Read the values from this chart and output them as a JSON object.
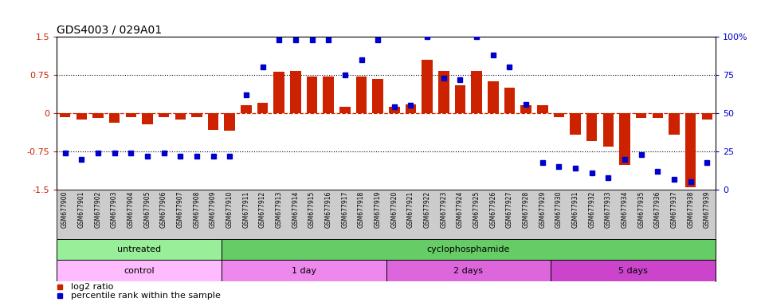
{
  "title": "GDS4003 / 029A01",
  "samples": [
    "GSM677900",
    "GSM677901",
    "GSM677902",
    "GSM677903",
    "GSM677904",
    "GSM677905",
    "GSM677906",
    "GSM677907",
    "GSM677908",
    "GSM677909",
    "GSM677910",
    "GSM677911",
    "GSM677912",
    "GSM677913",
    "GSM677914",
    "GSM677915",
    "GSM677916",
    "GSM677917",
    "GSM677918",
    "GSM677919",
    "GSM677920",
    "GSM677921",
    "GSM677922",
    "GSM677923",
    "GSM677924",
    "GSM677925",
    "GSM677926",
    "GSM677927",
    "GSM677928",
    "GSM677929",
    "GSM677930",
    "GSM677931",
    "GSM677932",
    "GSM677933",
    "GSM677934",
    "GSM677935",
    "GSM677936",
    "GSM677937",
    "GSM677938",
    "GSM677939"
  ],
  "log2_ratio": [
    -0.08,
    -0.12,
    -0.1,
    -0.18,
    -0.08,
    -0.22,
    -0.08,
    -0.12,
    -0.08,
    -0.32,
    -0.35,
    0.15,
    0.2,
    0.82,
    0.83,
    0.72,
    0.72,
    0.13,
    0.72,
    0.68,
    0.12,
    0.18,
    1.05,
    0.83,
    0.55,
    0.83,
    0.62,
    0.5,
    0.15,
    0.15,
    -0.08,
    -0.42,
    -0.55,
    -0.65,
    -1.02,
    -0.1,
    -0.1,
    -0.42,
    -1.45,
    -0.12
  ],
  "percentile": [
    24,
    20,
    24,
    24,
    24,
    22,
    24,
    22,
    22,
    22,
    22,
    62,
    80,
    98,
    98,
    98,
    98,
    75,
    85,
    98,
    54,
    55,
    100,
    73,
    72,
    100,
    88,
    80,
    56,
    18,
    15,
    14,
    11,
    8,
    20,
    23,
    12,
    7,
    5,
    18
  ],
  "bar_color": "#cc2200",
  "dot_color": "#0000cc",
  "ylim_left": [
    -1.5,
    1.5
  ],
  "ylim_right": [
    0,
    100
  ],
  "yticks_left": [
    -1.5,
    -0.75,
    0,
    0.75,
    1.5
  ],
  "yticks_right": [
    0,
    25,
    50,
    75,
    100
  ],
  "agent_groups": [
    {
      "label": "untreated",
      "start": 0,
      "end": 10,
      "color": "#99ee99"
    },
    {
      "label": "cyclophosphamide",
      "start": 10,
      "end": 40,
      "color": "#66cc66"
    }
  ],
  "time_groups": [
    {
      "label": "control",
      "start": 0,
      "end": 10,
      "color": "#ffbbff"
    },
    {
      "label": "1 day",
      "start": 10,
      "end": 20,
      "color": "#ee88ee"
    },
    {
      "label": "2 days",
      "start": 20,
      "end": 30,
      "color": "#dd66dd"
    },
    {
      "label": "5 days",
      "start": 30,
      "end": 40,
      "color": "#cc44cc"
    }
  ],
  "legend_bar_label": "log2 ratio",
  "legend_dot_label": "percentile rank within the sample",
  "bg_color": "#ffffff",
  "xlabels_bg": "#cccccc",
  "title_fontsize": 10,
  "axis_label_fontsize": 8,
  "tick_fontsize": 8,
  "group_fontsize": 8,
  "sample_fontsize": 5.5
}
